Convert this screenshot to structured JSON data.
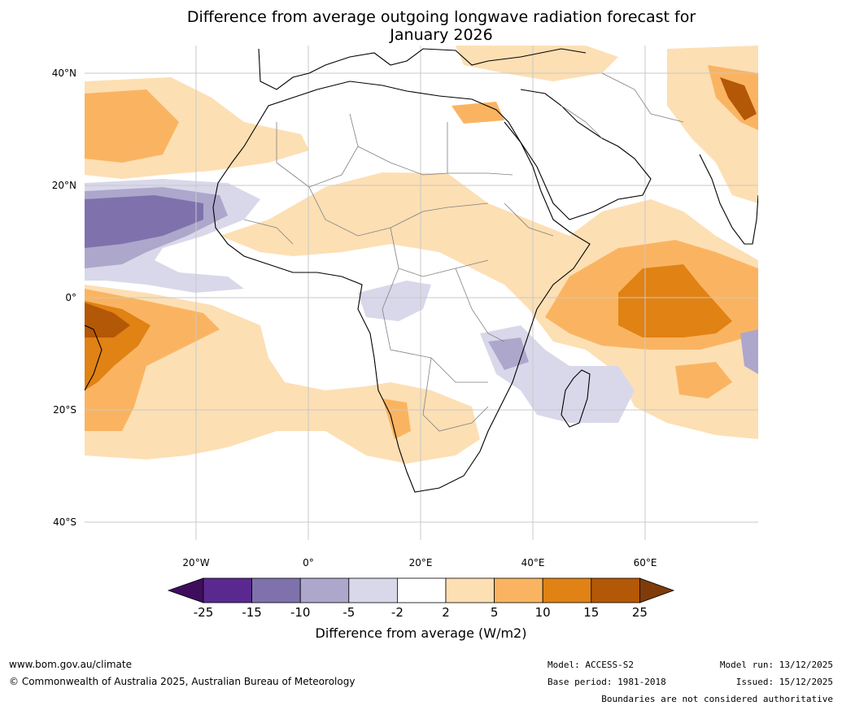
{
  "title": {
    "line1": "Difference from average outgoing longwave radiation forecast for",
    "line2": "January 2026"
  },
  "axes": {
    "lat_labels": [
      "40°N",
      "20°N",
      "0°",
      "20°S",
      "40°S"
    ],
    "lon_labels": [
      "20°W",
      "0°",
      "20°E",
      "40°E",
      "60°E"
    ]
  },
  "colorbar": {
    "title": "Difference from average (W/m2)",
    "ticks": [
      "-25",
      "-15",
      "-10",
      "-5",
      "-2",
      "2",
      "5",
      "10",
      "15",
      "25"
    ],
    "colors": [
      "#3f0d5e",
      "#5a2990",
      "#7f72ac",
      "#ada7cc",
      "#d9d8ea",
      "#ffffff",
      "#fddfb4",
      "#fab461",
      "#e08214",
      "#b35806",
      "#7f3b08"
    ]
  },
  "footer": {
    "website": "www.bom.gov.au/climate",
    "copyright": "© Commonwealth of Australia 2025, Australian Bureau of Meteorology",
    "model": "Model: ACCESS-S2",
    "base_period": "Base period: 1981-2018",
    "model_run": "Model run: 13/12/2025",
    "issued": "Issued: 15/12/2025",
    "disclaimer": "Boundaries are not considered authoritative"
  },
  "colors": {
    "land_outline": "#000000",
    "border": "#808080",
    "grid": "#c8c8c8"
  }
}
